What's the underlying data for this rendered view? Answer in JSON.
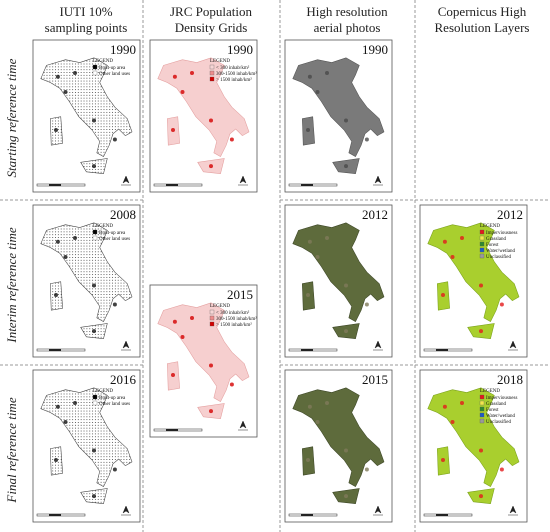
{
  "headers": [
    [
      "IUTI 10%",
      "sampling points"
    ],
    [
      "JRC Population",
      "Density Grids"
    ],
    [
      "High resolution",
      "aerial photos"
    ],
    [
      "Copernicus High",
      "Resolution Layers"
    ]
  ],
  "row_labels": [
    "Starting reference time",
    "Interim reference time",
    "Final reference time"
  ],
  "panels": [
    {
      "year": "1990",
      "legend": {
        "title": "LEGEND",
        "items": [
          "Built-up area",
          "Other land uses"
        ]
      }
    },
    {
      "year": "1990",
      "legend": {
        "title": "LEGEND",
        "items": [
          "< 300 inhab/km²",
          "300-1500 inhab/km²",
          "> 1500 inhab/km²"
        ]
      }
    },
    {
      "year": "1990"
    },
    {
      "year": "2008",
      "legend": {
        "title": "LEGEND",
        "items": [
          "Built-up area",
          "Other land uses"
        ]
      }
    },
    {
      "year": "2015",
      "legend": {
        "title": "LEGEND",
        "items": [
          "< 300 inhab/km²",
          "300-1500 inhab/km²",
          "> 1500 inhab/km²"
        ]
      }
    },
    {
      "year": "2012"
    },
    {
      "year": "2012",
      "legend": {
        "title": "LEGEND",
        "items": [
          "Imperviousness",
          "Grassland",
          "Forest",
          "Water/wetland",
          "Unclassified"
        ]
      }
    },
    {
      "year": "2016",
      "legend": {
        "title": "LEGEND",
        "items": [
          "Built-up area",
          "Other land uses"
        ]
      }
    },
    {
      "year": "2015"
    },
    {
      "year": "2018",
      "legend": {
        "title": "LEGEND",
        "items": [
          "Imperviousness",
          "Grassland",
          "Forest",
          "Water/wetland",
          "Unclassified"
        ]
      }
    }
  ]
}
